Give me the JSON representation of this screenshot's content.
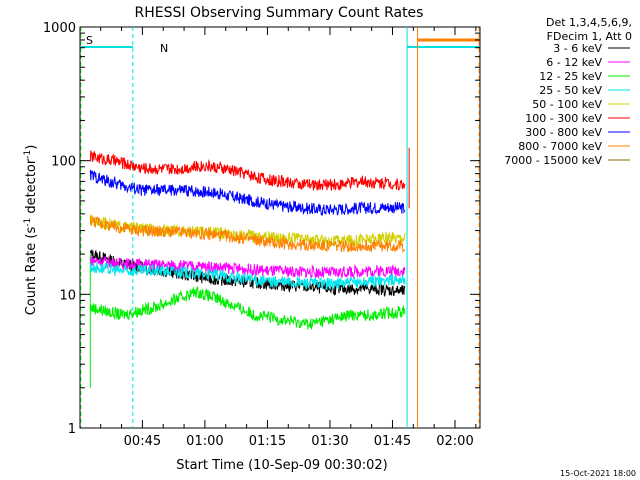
{
  "chart_data": {
    "type": "line",
    "title": "RHESSI Observing Summary Count Rates",
    "xlabel": "Start Time (10-Sep-09 00:30:02)",
    "ylabel_main": "Count Rate (s",
    "ylabel_sup1": "-1",
    "ylabel_mid": " detector",
    "ylabel_sup2": "-1",
    "ylabel_end": ")",
    "y_scale": "log",
    "ylim": [
      1,
      1000
    ],
    "xlim_minutes": [
      30.03,
      126.0
    ],
    "x_ticks": [
      {
        "t": 45,
        "label": "00:45"
      },
      {
        "t": 60,
        "label": "01:00"
      },
      {
        "t": 75,
        "label": "01:15"
      },
      {
        "t": 90,
        "label": "01:30"
      },
      {
        "t": 105,
        "label": "01:45"
      },
      {
        "t": 120,
        "label": "02:00"
      }
    ],
    "y_ticks": [
      {
        "v": 1,
        "label": "1"
      },
      {
        "v": 10,
        "label": "10"
      },
      {
        "v": 100,
        "label": "100"
      },
      {
        "v": 1000,
        "label": "1000"
      }
    ],
    "legend_header": [
      "Det 1,3,4,5,6,9,",
      "FDecim 1, Att 0"
    ],
    "legend_position": "right",
    "flag_labels": [
      {
        "text": "S",
        "color": "#ff8000"
      },
      {
        "text": "N",
        "color": "#00e0e0"
      }
    ],
    "timestamp": "15-Oct-2021 18:00",
    "series": [
      {
        "name": "3 - 6 keV",
        "color": "#000000",
        "points": [
          [
            32.5,
            20
          ],
          [
            40,
            17
          ],
          [
            50,
            15
          ],
          [
            62,
            13
          ],
          [
            75,
            12
          ],
          [
            90,
            11
          ],
          [
            100,
            11
          ],
          [
            108,
            10.5
          ]
        ]
      },
      {
        "name": "6 - 12 keV",
        "color": "#ff00ff",
        "points": [
          [
            32.5,
            18
          ],
          [
            40,
            17
          ],
          [
            50,
            16.5
          ],
          [
            62,
            16
          ],
          [
            75,
            15
          ],
          [
            90,
            14.5
          ],
          [
            100,
            15
          ],
          [
            108,
            15
          ]
        ]
      },
      {
        "name": "12 - 25 keV",
        "color": "#00ee00",
        "points": [
          [
            32.5,
            8
          ],
          [
            40,
            7
          ],
          [
            48,
            8
          ],
          [
            58,
            10.5
          ],
          [
            64,
            9
          ],
          [
            72,
            7
          ],
          [
            85,
            6
          ],
          [
            95,
            7
          ],
          [
            100,
            7
          ],
          [
            108,
            7.5
          ]
        ]
      },
      {
        "name": "25 - 50 keV",
        "color": "#00e5ee",
        "points": [
          [
            32.5,
            16
          ],
          [
            40,
            15
          ],
          [
            50,
            15
          ],
          [
            62,
            14
          ],
          [
            75,
            12.5
          ],
          [
            90,
            12
          ],
          [
            100,
            12.5
          ],
          [
            108,
            13
          ]
        ]
      },
      {
        "name": "50 - 100 keV",
        "color": "#d0d000",
        "points": [
          [
            32.5,
            36
          ],
          [
            40,
            32
          ],
          [
            50,
            30
          ],
          [
            62,
            29
          ],
          [
            75,
            27
          ],
          [
            90,
            25
          ],
          [
            100,
            26
          ],
          [
            108,
            27
          ]
        ]
      },
      {
        "name": "100 - 300 keV",
        "color": "#ff0000",
        "points": [
          [
            32.5,
            108
          ],
          [
            38,
            100
          ],
          [
            45,
            88
          ],
          [
            52,
            86
          ],
          [
            60,
            92
          ],
          [
            68,
            83
          ],
          [
            75,
            72
          ],
          [
            85,
            66
          ],
          [
            92,
            66
          ],
          [
            98,
            70
          ],
          [
            104,
            68
          ],
          [
            108,
            66
          ]
        ]
      },
      {
        "name": "300 - 800 keV",
        "color": "#0000ff",
        "points": [
          [
            32.5,
            78
          ],
          [
            38,
            68
          ],
          [
            45,
            60
          ],
          [
            55,
            60
          ],
          [
            62,
            58
          ],
          [
            70,
            51
          ],
          [
            78,
            46
          ],
          [
            88,
            43
          ],
          [
            96,
            44
          ],
          [
            104,
            45
          ],
          [
            108,
            44
          ]
        ]
      },
      {
        "name": "800 - 7000 keV",
        "color": "#ff8000",
        "points": [
          [
            32.5,
            36
          ],
          [
            38,
            32
          ],
          [
            45,
            30
          ],
          [
            55,
            29
          ],
          [
            62,
            28
          ],
          [
            70,
            26
          ],
          [
            78,
            24
          ],
          [
            88,
            23
          ],
          [
            96,
            23
          ],
          [
            104,
            23
          ],
          [
            108,
            23
          ]
        ]
      },
      {
        "name": "7000 - 15000 keV",
        "color": "#8b6508",
        "points": []
      }
    ]
  }
}
